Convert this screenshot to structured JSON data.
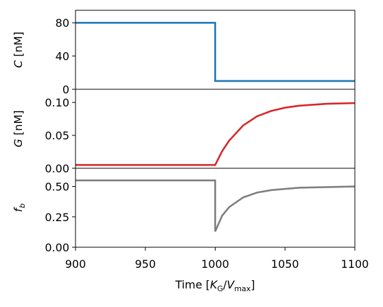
{
  "chart_data": [
    {
      "type": "line",
      "ylabel": [
        "C",
        " [nM]"
      ],
      "x": [
        900,
        1000,
        1000,
        1100
      ],
      "series": [
        {
          "name": "C",
          "color": "#1f77b4",
          "values": [
            80,
            80,
            10,
            10
          ]
        }
      ],
      "xlim": [
        900,
        1100
      ],
      "ylim": [
        0,
        95
      ],
      "yticks": [
        0,
        40,
        80
      ]
    },
    {
      "type": "line",
      "ylabel": [
        "G",
        " [nM]"
      ],
      "x": [
        900,
        1000,
        1005,
        1010,
        1020,
        1030,
        1040,
        1050,
        1060,
        1080,
        1100
      ],
      "series": [
        {
          "name": "G",
          "color": "#d62728",
          "values": [
            0.005,
            0.005,
            0.026,
            0.042,
            0.065,
            0.079,
            0.087,
            0.092,
            0.095,
            0.098,
            0.099
          ]
        }
      ],
      "xlim": [
        900,
        1100
      ],
      "ylim": [
        0,
        0.12
      ],
      "yticks": [
        {
          "value": 0,
          "label": "0.00"
        },
        {
          "value": 0.05,
          "label": "0.05"
        },
        {
          "value": 0.1,
          "label": "0.10"
        }
      ]
    },
    {
      "type": "line",
      "ylabel": [
        "f",
        "b"
      ],
      "xlabel": [
        "Time [",
        "K",
        "G",
        "/",
        "V",
        "max",
        "]"
      ],
      "x": [
        900,
        1000,
        1000,
        1005,
        1010,
        1020,
        1030,
        1040,
        1050,
        1060,
        1080,
        1100
      ],
      "series": [
        {
          "name": "f_b",
          "color": "#7f7f7f",
          "values": [
            0.55,
            0.55,
            0.13,
            0.26,
            0.33,
            0.41,
            0.45,
            0.47,
            0.48,
            0.49,
            0.495,
            0.5
          ]
        }
      ],
      "xlim": [
        900,
        1100
      ],
      "ylim": [
        0,
        0.65
      ],
      "xticks": [
        900,
        950,
        1000,
        1050,
        1100
      ],
      "yticks": [
        {
          "value": 0,
          "label": "0.00"
        },
        {
          "value": 0.25,
          "label": "0.25"
        },
        {
          "value": 0.5,
          "label": "0.50"
        }
      ]
    }
  ]
}
